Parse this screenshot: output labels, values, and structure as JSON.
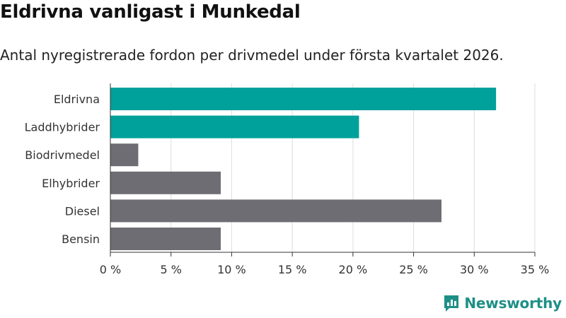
{
  "header": {
    "title": "Eldrivna vanligast i Munkedal",
    "subtitle": "Antal nyregistrerade fordon per drivmedel under första kvartalet 2026."
  },
  "brand": {
    "name": "Newsworthy",
    "icon": "newsworthy-logo-icon",
    "color": "#1e8f86"
  },
  "chart_data": {
    "type": "bar",
    "orientation": "horizontal",
    "title": "Eldrivna vanligast i Munkedal",
    "subtitle": "Antal nyregistrerade fordon per drivmedel under första kvartalet 2026.",
    "xlabel": "",
    "ylabel": "",
    "xlim": [
      0,
      35
    ],
    "unit": "%",
    "grid": true,
    "categories": [
      "Eldrivna",
      "Laddhybrider",
      "Biodrivmedel",
      "Elhybrider",
      "Diesel",
      "Bensin"
    ],
    "values": [
      31.8,
      20.5,
      2.3,
      9.1,
      27.3,
      9.1
    ],
    "highlighted": [
      true,
      true,
      false,
      false,
      false,
      false
    ],
    "colors": {
      "highlight": "#00a19a",
      "default": "#6e6d73",
      "grid": "#dddddd",
      "axis": "#333333"
    },
    "ticks": [
      0,
      5,
      10,
      15,
      20,
      25,
      30,
      35
    ],
    "tick_labels": [
      "0 %",
      "5 %",
      "10 %",
      "15 %",
      "20 %",
      "25 %",
      "30 %",
      "35 %"
    ]
  }
}
